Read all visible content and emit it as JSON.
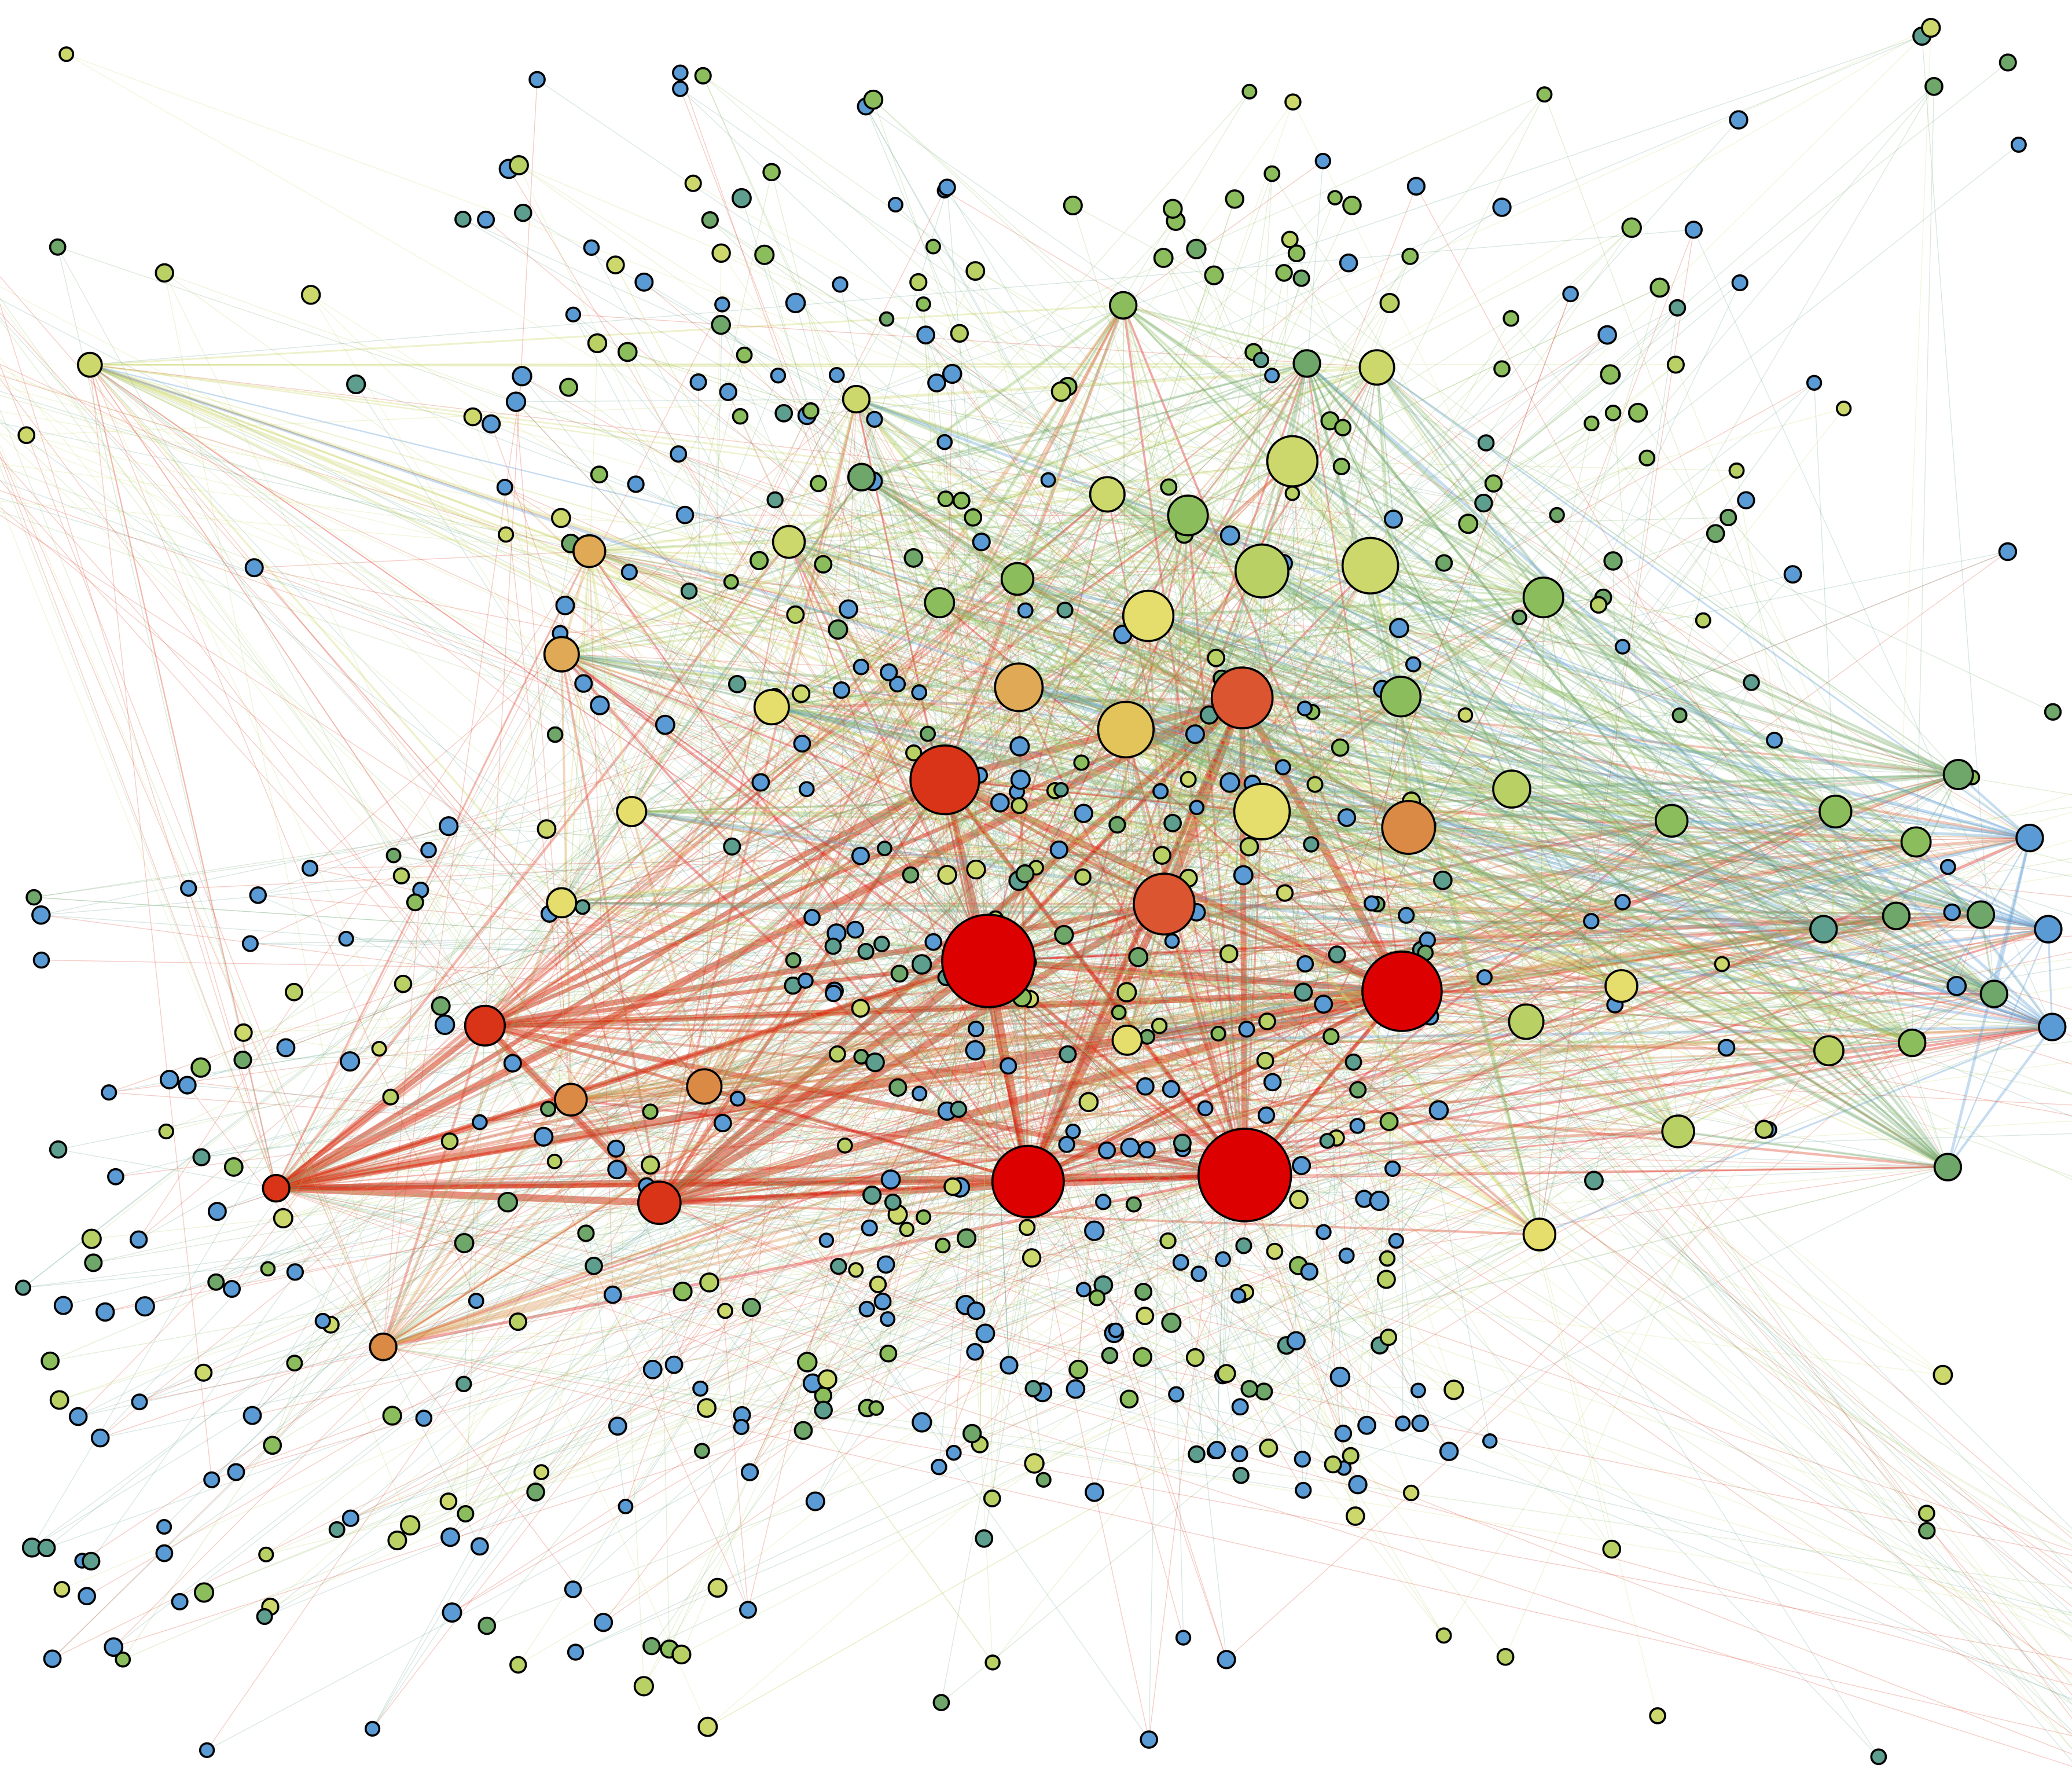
{
  "graph": {
    "background": "#ffffff",
    "node_outline": "#000000",
    "palette": {
      "red": "#dd0000",
      "red_orange": "#d93318",
      "orange_red": "#da5530",
      "orange": "#da8a45",
      "light_orange": "#dfa955",
      "gold": "#e2c45a",
      "yellow": "#e6de6c",
      "yellow_green": "#cdd86c",
      "light_green": "#b9d065",
      "green": "#8bbd5c",
      "mid_green": "#6fa76a",
      "teal": "#5e9e8e",
      "blue": "#5b9bd5"
    },
    "edge_opacity": 0.25
  }
}
